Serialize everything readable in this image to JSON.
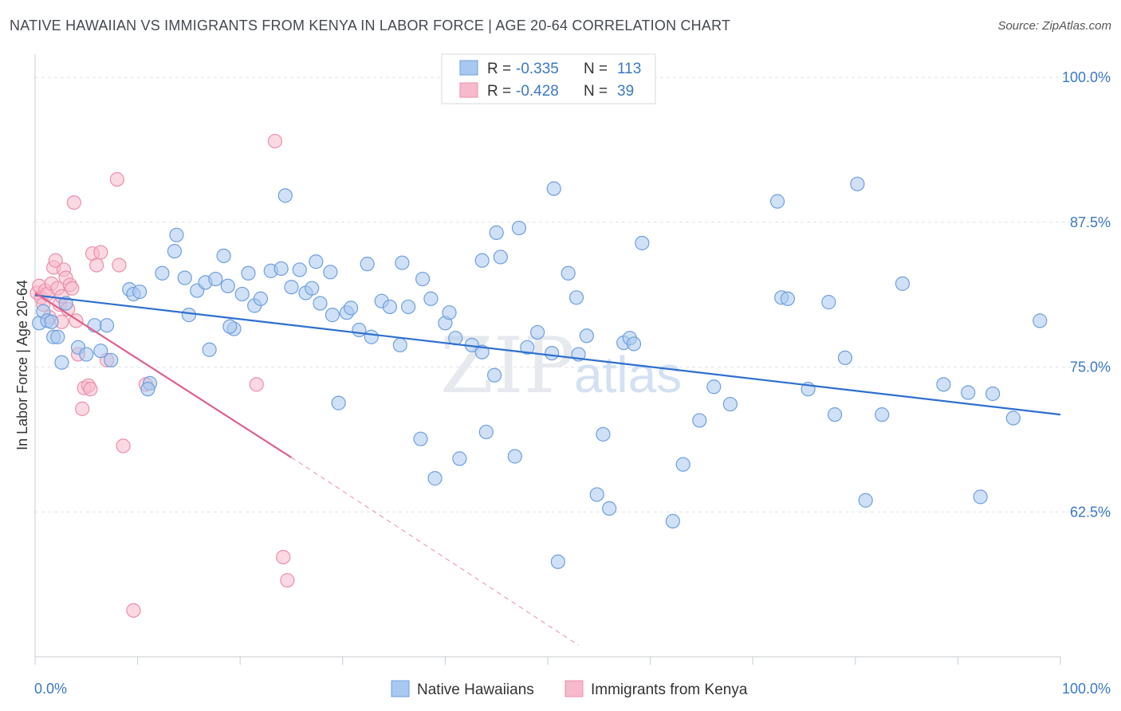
{
  "title": "NATIVE HAWAIIAN VS IMMIGRANTS FROM KENYA IN LABOR FORCE | AGE 20-64 CORRELATION CHART",
  "source": "Source: ZipAtlas.com",
  "watermark": {
    "zip": "ZIP",
    "atlas": "atlas"
  },
  "colors": {
    "blue_fill": "#a9c8f0",
    "blue_stroke": "#6f9fdc",
    "blue_line": "#2e6fcf",
    "pink_fill": "#f7b9cc",
    "pink_stroke": "#ec8fab",
    "pink_line": "#e0608a",
    "grid": "#dde3ea",
    "tick_label": "#3b78c4"
  },
  "legend": {
    "rows": [
      {
        "r_label": "R =",
        "r_value": "-0.335",
        "n_label": "N =",
        "n_value": "113"
      },
      {
        "r_label": "R =",
        "r_value": "-0.428",
        "n_label": "N =",
        "n_value": "39"
      }
    ]
  },
  "bottom_legend": [
    "Native Hawaiians",
    "Immigrants from Kenya"
  ],
  "chart_data": {
    "type": "scatter",
    "title": "NATIVE HAWAIIAN VS IMMIGRANTS FROM KENYA IN LABOR FORCE | AGE 20-64 CORRELATION CHART",
    "xlabel": "",
    "ylabel": "In Labor Force | Age 20-64",
    "xlim": [
      0,
      100
    ],
    "ylim": [
      50,
      102
    ],
    "x_tick_labels": [
      "0.0%",
      "100.0%"
    ],
    "y_ticks": [
      100.0,
      87.5,
      75.0,
      62.5
    ],
    "y_tick_labels": [
      "100.0%",
      "87.5%",
      "75.0%",
      "62.5%"
    ],
    "grid": true,
    "legend_position": "top-center",
    "series": [
      {
        "name": "Native Hawaiians",
        "r": -0.335,
        "n": 113,
        "trend": {
          "x": [
            0,
            100
          ],
          "y": [
            81.2,
            70.9
          ]
        },
        "points": [
          [
            0.4,
            78.8
          ],
          [
            0.8,
            79.8
          ],
          [
            1.2,
            79.0
          ],
          [
            1.6,
            78.9
          ],
          [
            1.8,
            77.6
          ],
          [
            2.2,
            77.6
          ],
          [
            2.6,
            75.4
          ],
          [
            3.0,
            80.5
          ],
          [
            4.2,
            76.7
          ],
          [
            5.0,
            76.1
          ],
          [
            5.8,
            78.6
          ],
          [
            6.4,
            76.4
          ],
          [
            7.0,
            78.6
          ],
          [
            7.4,
            75.6
          ],
          [
            9.2,
            81.7
          ],
          [
            9.6,
            81.3
          ],
          [
            10.2,
            81.5
          ],
          [
            11.2,
            73.6
          ],
          [
            11.0,
            73.1
          ],
          [
            12.4,
            83.1
          ],
          [
            13.6,
            85.0
          ],
          [
            13.8,
            86.4
          ],
          [
            14.6,
            82.7
          ],
          [
            15.0,
            79.5
          ],
          [
            15.8,
            81.6
          ],
          [
            16.6,
            82.3
          ],
          [
            17.0,
            76.5
          ],
          [
            17.6,
            82.6
          ],
          [
            18.4,
            84.6
          ],
          [
            18.8,
            82.0
          ],
          [
            19.4,
            78.3
          ],
          [
            20.2,
            81.3
          ],
          [
            20.8,
            83.1
          ],
          [
            21.4,
            80.3
          ],
          [
            22.0,
            80.9
          ],
          [
            23.0,
            83.3
          ],
          [
            24.0,
            83.5
          ],
          [
            24.4,
            89.8
          ],
          [
            25.0,
            81.9
          ],
          [
            25.8,
            83.4
          ],
          [
            26.4,
            81.4
          ],
          [
            27.0,
            81.8
          ],
          [
            27.4,
            84.1
          ],
          [
            27.8,
            80.5
          ],
          [
            28.8,
            83.2
          ],
          [
            29.0,
            79.5
          ],
          [
            29.6,
            71.9
          ],
          [
            30.4,
            79.7
          ],
          [
            30.8,
            80.1
          ],
          [
            31.6,
            78.2
          ],
          [
            32.4,
            83.9
          ],
          [
            32.8,
            77.6
          ],
          [
            33.8,
            80.7
          ],
          [
            34.6,
            80.2
          ],
          [
            35.6,
            76.9
          ],
          [
            35.8,
            84.0
          ],
          [
            36.4,
            80.2
          ],
          [
            37.6,
            68.8
          ],
          [
            37.8,
            82.6
          ],
          [
            38.6,
            80.9
          ],
          [
            39.0,
            65.4
          ],
          [
            40.0,
            78.8
          ],
          [
            40.4,
            79.7
          ],
          [
            41.0,
            77.5
          ],
          [
            41.4,
            67.1
          ],
          [
            42.6,
            76.9
          ],
          [
            43.6,
            76.3
          ],
          [
            43.6,
            84.2
          ],
          [
            44.0,
            69.4
          ],
          [
            44.8,
            74.3
          ],
          [
            45.0,
            86.6
          ],
          [
            45.4,
            84.5
          ],
          [
            46.8,
            67.3
          ],
          [
            47.2,
            87.0
          ],
          [
            48.0,
            76.7
          ],
          [
            49.0,
            78.0
          ],
          [
            50.4,
            76.2
          ],
          [
            50.6,
            90.4
          ],
          [
            51.0,
            58.2
          ],
          [
            52.0,
            83.1
          ],
          [
            52.8,
            81.0
          ],
          [
            53.0,
            76.1
          ],
          [
            53.8,
            77.7
          ],
          [
            54.8,
            64.0
          ],
          [
            55.4,
            69.2
          ],
          [
            56.0,
            62.8
          ],
          [
            57.4,
            77.1
          ],
          [
            58.0,
            77.5
          ],
          [
            58.4,
            77.0
          ],
          [
            59.2,
            85.7
          ],
          [
            62.2,
            61.7
          ],
          [
            63.2,
            66.6
          ],
          [
            64.8,
            70.4
          ],
          [
            66.2,
            73.3
          ],
          [
            67.8,
            71.8
          ],
          [
            72.4,
            89.3
          ],
          [
            72.8,
            81.0
          ],
          [
            73.4,
            80.9
          ],
          [
            75.4,
            73.1
          ],
          [
            77.4,
            80.6
          ],
          [
            78.0,
            70.9
          ],
          [
            79.0,
            75.8
          ],
          [
            80.2,
            90.8
          ],
          [
            81.0,
            63.5
          ],
          [
            82.6,
            70.9
          ],
          [
            84.6,
            82.2
          ],
          [
            88.6,
            73.5
          ],
          [
            91.0,
            72.8
          ],
          [
            93.4,
            72.7
          ],
          [
            95.4,
            70.6
          ],
          [
            98.0,
            79.0
          ],
          [
            92.2,
            63.8
          ],
          [
            19.0,
            78.5
          ]
        ]
      },
      {
        "name": "Immigrants from Kenya",
        "r": -0.428,
        "n": 39,
        "trend": {
          "x": [
            0,
            25
          ],
          "y": [
            81.4,
            67.2
          ],
          "dashed_to": {
            "x": 53,
            "y": 51.0
          }
        },
        "points": [
          [
            0.2,
            81.4
          ],
          [
            0.4,
            82.0
          ],
          [
            0.6,
            81.0
          ],
          [
            0.8,
            80.4
          ],
          [
            1.0,
            81.6
          ],
          [
            1.2,
            81.3
          ],
          [
            1.4,
            79.3
          ],
          [
            1.6,
            82.2
          ],
          [
            1.8,
            83.6
          ],
          [
            2.0,
            84.2
          ],
          [
            2.2,
            81.8
          ],
          [
            2.4,
            80.4
          ],
          [
            2.6,
            81.1
          ],
          [
            2.8,
            83.4
          ],
          [
            3.0,
            82.7
          ],
          [
            3.2,
            80.0
          ],
          [
            3.4,
            82.1
          ],
          [
            3.6,
            81.8
          ],
          [
            3.8,
            89.2
          ],
          [
            4.0,
            79.0
          ],
          [
            4.2,
            76.1
          ],
          [
            4.6,
            71.4
          ],
          [
            4.8,
            73.2
          ],
          [
            5.2,
            73.4
          ],
          [
            5.4,
            73.1
          ],
          [
            5.6,
            84.8
          ],
          [
            6.0,
            83.8
          ],
          [
            6.4,
            84.9
          ],
          [
            7.0,
            75.6
          ],
          [
            8.2,
            83.8
          ],
          [
            8.0,
            91.2
          ],
          [
            8.6,
            68.2
          ],
          [
            9.6,
            54.0
          ],
          [
            10.8,
            73.5
          ],
          [
            21.6,
            73.5
          ],
          [
            23.4,
            94.5
          ],
          [
            24.2,
            58.6
          ],
          [
            24.6,
            56.6
          ],
          [
            2.6,
            78.9
          ]
        ]
      }
    ]
  }
}
